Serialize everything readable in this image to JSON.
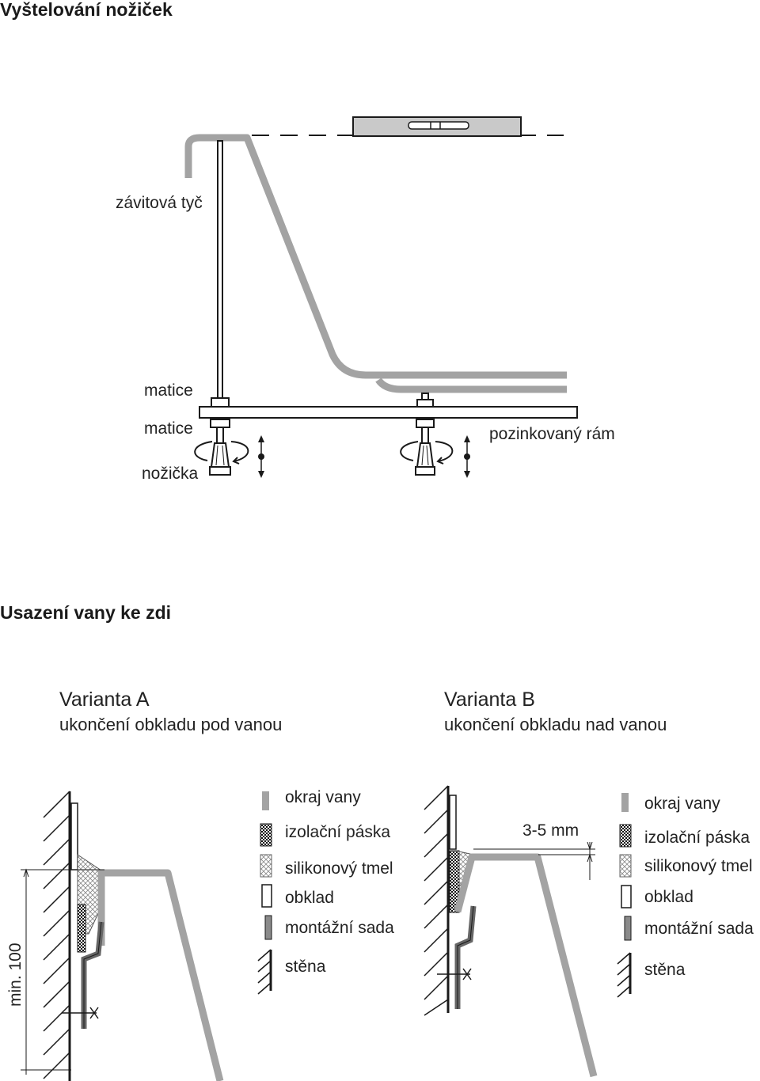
{
  "section1": {
    "title": "Vyštelování nožiček",
    "labels": {
      "threaded_rod": "závitová tyč",
      "nut_upper": "matice",
      "nut_lower": "matice",
      "foot": "nožička",
      "frame": "pozinkovaný rám"
    }
  },
  "section2": {
    "title": "Usazení vany ke zdi",
    "variant_a": {
      "title": "Varianta A",
      "subtitle": "ukončení obkladu pod vanou",
      "dimension": "min. 100"
    },
    "variant_b": {
      "title": "Varianta B",
      "subtitle": "ukončení obkladu nad vanou",
      "dimension": "3-5 mm"
    },
    "legend": {
      "tub_edge": "okraj vany",
      "tape": "izolační páska",
      "silicone": "silikonový tmel",
      "tiles": "obklad",
      "mounting_kit": "montážní sada",
      "wall": "stěna"
    }
  },
  "colors": {
    "tub": "#a3a3a3",
    "line": "#1a1a1a",
    "level": "#c9c9c9"
  }
}
